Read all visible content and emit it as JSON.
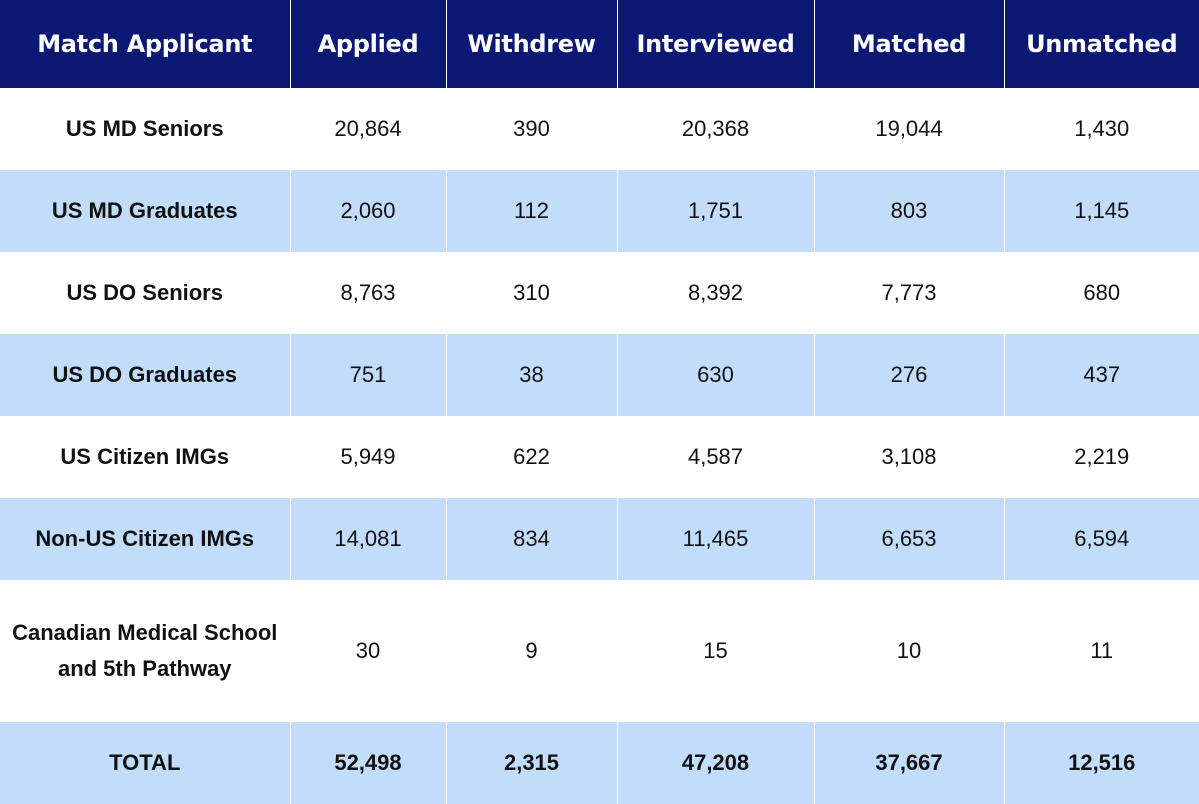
{
  "chart_data": {
    "type": "table",
    "columns": [
      "Match Applicant",
      "Applied",
      "Withdrew",
      "Interviewed",
      "Matched",
      "Unmatched"
    ],
    "rows": [
      {
        "label": "US MD Seniors",
        "values": [
          "20,864",
          "390",
          "20,368",
          "19,044",
          "1,430"
        ]
      },
      {
        "label": "US MD Graduates",
        "values": [
          "2,060",
          "112",
          "1,751",
          "803",
          "1,145"
        ]
      },
      {
        "label": "US DO Seniors",
        "values": [
          "8,763",
          "310",
          "8,392",
          "7,773",
          "680"
        ]
      },
      {
        "label": "US DO Graduates",
        "values": [
          "751",
          "38",
          "630",
          "276",
          "437"
        ]
      },
      {
        "label": "US Citizen IMGs",
        "values": [
          "5,949",
          "622",
          "4,587",
          "3,108",
          "2,219"
        ]
      },
      {
        "label": "Non-US Citizen IMGs",
        "values": [
          "14,081",
          "834",
          "11,465",
          "6,653",
          "6,594"
        ]
      },
      {
        "label": "Canadian Medical School and 5th Pathway",
        "values": [
          "30",
          "9",
          "15",
          "10",
          "11"
        ]
      }
    ],
    "total": {
      "label": "TOTAL",
      "values": [
        "52,498",
        "2,315",
        "47,208",
        "37,667",
        "12,516"
      ]
    }
  },
  "colors": {
    "header_bg": "#0b1874",
    "header_text": "#ffffff",
    "stripe_bg": "#c2dcfb",
    "plain_bg": "#ffffff"
  }
}
